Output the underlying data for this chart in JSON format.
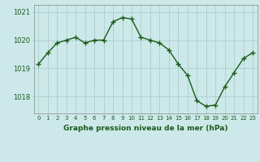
{
  "x": [
    0,
    1,
    2,
    3,
    4,
    5,
    6,
    7,
    8,
    9,
    10,
    11,
    12,
    13,
    14,
    15,
    16,
    17,
    18,
    19,
    20,
    21,
    22,
    23
  ],
  "y": [
    1019.15,
    1019.55,
    1019.9,
    1020.0,
    1020.1,
    1019.9,
    1020.0,
    1020.0,
    1020.65,
    1020.8,
    1020.75,
    1020.1,
    1020.0,
    1019.9,
    1019.65,
    1019.15,
    1018.75,
    1017.85,
    1017.65,
    1017.7,
    1018.35,
    1018.85,
    1019.35,
    1019.55
  ],
  "bg_color": "#cce8e8",
  "grid_color": "#aacece",
  "line_color": "#1a5c1a",
  "marker_color": "#1a5c1a",
  "xlabel": "Graphe pression niveau de la mer (hPa)",
  "yticks": [
    1018,
    1019,
    1020,
    1021
  ],
  "xticks": [
    0,
    1,
    2,
    3,
    4,
    5,
    6,
    7,
    8,
    9,
    10,
    11,
    12,
    13,
    14,
    15,
    16,
    17,
    18,
    19,
    20,
    21,
    22,
    23
  ],
  "ylim": [
    1017.4,
    1021.25
  ],
  "xlim": [
    -0.5,
    23.5
  ]
}
